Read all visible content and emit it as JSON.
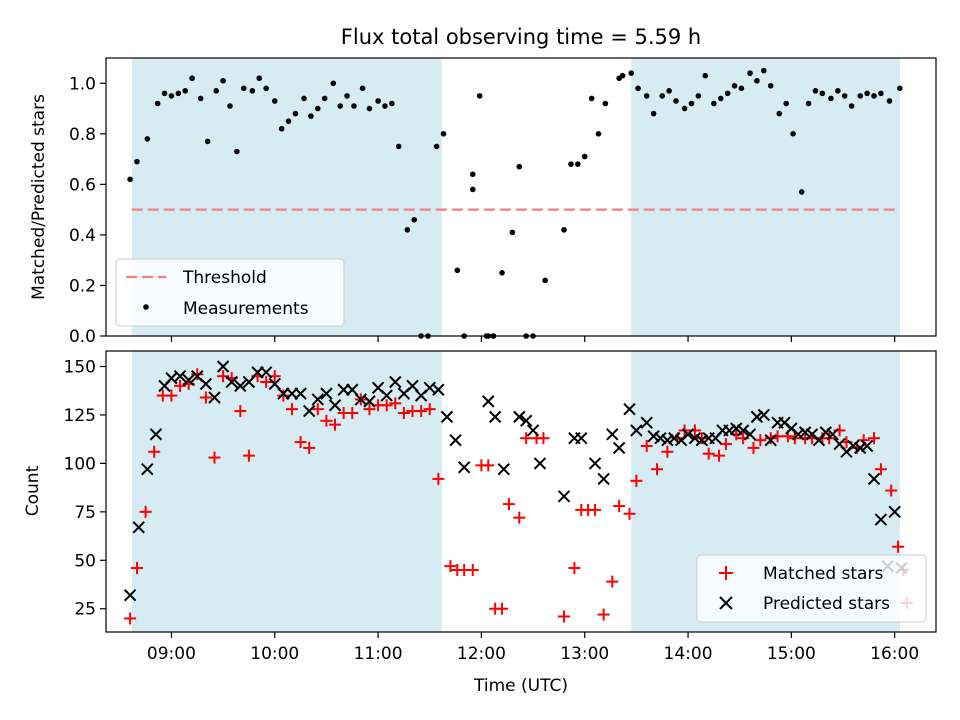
{
  "title": "Flux total observing time = 5.59 h",
  "chart_data": [
    {
      "type": "scatter",
      "panel": "top",
      "ylabel": "Matched/Predicted stars",
      "ylim": [
        0,
        1.1
      ],
      "yticks": [
        0.0,
        0.2,
        0.4,
        0.6,
        0.8,
        1.0
      ],
      "ytick_labels": [
        "0.0",
        "0.2",
        "0.4",
        "0.6",
        "0.8",
        "1.0"
      ],
      "threshold": 0.5,
      "legend_position": "lower-left",
      "series": [
        {
          "name": "Measurements",
          "color": "#000000",
          "x": [
            "08:36",
            "08:40",
            "08:46",
            "08:52",
            "08:56",
            "09:00",
            "09:04",
            "09:08",
            "09:12",
            "09:17",
            "09:21",
            "09:26",
            "09:30",
            "09:34",
            "09:38",
            "09:42",
            "09:47",
            "09:51",
            "09:55",
            "10:00",
            "10:04",
            "10:08",
            "10:12",
            "10:17",
            "10:21",
            "10:25",
            "10:29",
            "10:34",
            "10:38",
            "10:42",
            "10:46",
            "10:51",
            "10:55",
            "11:00",
            "11:04",
            "11:08",
            "11:12",
            "11:17",
            "11:21",
            "11:25",
            "11:29",
            "11:34",
            "11:38",
            "11:46",
            "11:50",
            "11:55",
            "11:55",
            "11:59",
            "12:03",
            "12:04",
            "12:07",
            "12:12",
            "12:18",
            "12:22",
            "12:26",
            "12:30",
            "12:37",
            "12:48",
            "12:52",
            "12:56",
            "13:00",
            "13:04",
            "13:08",
            "13:12",
            "13:20",
            "13:22",
            "13:27",
            "13:31",
            "13:36",
            "13:40",
            "13:45",
            "13:49",
            "13:53",
            "13:58",
            "14:02",
            "14:06",
            "14:10",
            "14:15",
            "14:19",
            "14:23",
            "14:27",
            "14:31",
            "14:36",
            "14:40",
            "14:44",
            "14:48",
            "14:53",
            "14:57",
            "15:01",
            "15:06",
            "15:10",
            "15:14",
            "15:18",
            "15:23",
            "15:27",
            "15:31",
            "15:35",
            "15:40",
            "15:44",
            "15:48",
            "15:52",
            "15:57",
            "16:03"
          ],
          "y": [
            0.62,
            0.69,
            0.78,
            0.92,
            0.96,
            0.95,
            0.96,
            0.97,
            1.02,
            0.94,
            0.77,
            0.97,
            1.01,
            0.91,
            0.73,
            0.98,
            0.97,
            1.02,
            0.98,
            0.93,
            0.82,
            0.85,
            0.88,
            0.94,
            0.87,
            0.9,
            0.94,
            1.0,
            0.91,
            0.95,
            0.91,
            0.98,
            0.9,
            0.93,
            0.91,
            0.92,
            0.75,
            0.42,
            0.46,
            0.0,
            0.0,
            0.75,
            0.8,
            0.26,
            0.0,
            0.64,
            0.58,
            0.95,
            0.0,
            0.0,
            0.0,
            0.25,
            0.41,
            0.67,
            0.0,
            0.0,
            0.22,
            0.42,
            0.68,
            0.68,
            0.71,
            0.94,
            0.8,
            0.92,
            1.02,
            1.03,
            1.04,
            0.98,
            0.95,
            0.88,
            0.95,
            0.97,
            0.93,
            0.9,
            0.92,
            0.95,
            1.03,
            0.92,
            0.94,
            0.96,
            0.99,
            0.98,
            1.04,
            1.01,
            1.05,
            0.99,
            0.88,
            0.92,
            0.8,
            0.57,
            0.92,
            0.97,
            0.96,
            0.94,
            0.97,
            0.95,
            0.91,
            0.95,
            0.96,
            0.95,
            0.96,
            0.93,
            0.98
          ]
        }
      ]
    },
    {
      "type": "scatter",
      "panel": "bottom",
      "xlabel": "Time (UTC)",
      "ylabel": "Count",
      "ylim": [
        13,
        158
      ],
      "yticks": [
        25,
        50,
        75,
        100,
        125,
        150
      ],
      "ytick_labels": [
        "25",
        "50",
        "75",
        "100",
        "125",
        "150"
      ],
      "xticks": [
        "09:00",
        "10:00",
        "11:00",
        "12:00",
        "13:00",
        "14:00",
        "15:00",
        "16:00"
      ],
      "xlim": [
        "08:22",
        "16:24"
      ],
      "shaded_intervals": [
        [
          "08:37",
          "11:37"
        ],
        [
          "13:27",
          "16:03"
        ]
      ],
      "legend_position": "lower-right",
      "series": [
        {
          "name": "Matched stars",
          "color": "#ff0000",
          "marker": "+",
          "x": [
            "08:36",
            "08:40",
            "08:45",
            "08:50",
            "08:55",
            "09:00",
            "09:05",
            "09:10",
            "09:15",
            "09:20",
            "09:25",
            "09:30",
            "09:35",
            "09:40",
            "09:45",
            "09:50",
            "09:55",
            "10:00",
            "10:05",
            "10:10",
            "10:15",
            "10:20",
            "10:25",
            "10:30",
            "10:35",
            "10:40",
            "10:45",
            "10:50",
            "10:55",
            "11:00",
            "11:05",
            "11:10",
            "11:15",
            "11:20",
            "11:25",
            "11:30",
            "11:35",
            "11:42",
            "11:46",
            "11:50",
            "11:55",
            "12:00",
            "12:04",
            "12:08",
            "12:12",
            "12:16",
            "12:22",
            "12:26",
            "12:32",
            "12:36",
            "12:48",
            "12:54",
            "12:58",
            "13:02",
            "13:06",
            "13:11",
            "13:16",
            "13:20",
            "13:26",
            "13:30",
            "13:36",
            "13:42",
            "13:48",
            "13:54",
            "13:58",
            "14:04",
            "14:08",
            "14:12",
            "14:18",
            "14:22",
            "14:28",
            "14:32",
            "14:38",
            "14:42",
            "14:48",
            "14:52",
            "14:58",
            "15:02",
            "15:08",
            "15:12",
            "15:18",
            "15:22",
            "15:28",
            "15:32",
            "15:38",
            "15:42",
            "15:48",
            "15:52",
            "15:58",
            "16:02",
            "16:05",
            "16:07"
          ],
          "y": [
            20,
            46,
            75,
            106,
            135,
            135,
            140,
            141,
            146,
            134,
            103,
            145,
            144,
            127,
            104,
            145,
            142,
            145,
            135,
            128,
            111,
            108,
            128,
            122,
            120,
            126,
            126,
            133,
            128,
            130,
            130,
            131,
            126,
            127,
            127,
            128,
            92,
            47,
            45,
            45,
            45,
            99,
            99,
            25,
            25,
            79,
            72,
            113,
            113,
            113,
            21,
            46,
            76,
            76,
            76,
            22,
            39,
            78,
            74,
            91,
            109,
            97,
            106,
            113,
            117,
            117,
            113,
            105,
            104,
            110,
            115,
            113,
            108,
            112,
            113,
            114,
            114,
            113,
            113,
            113,
            113,
            113,
            117,
            111,
            108,
            112,
            113,
            97,
            86,
            57,
            45,
            28
          ]
        },
        {
          "name": "Predicted stars",
          "color": "#000000",
          "marker": "x",
          "x": [
            "08:36",
            "08:41",
            "08:46",
            "08:51",
            "08:56",
            "09:00",
            "09:05",
            "09:10",
            "09:15",
            "09:20",
            "09:25",
            "09:30",
            "09:35",
            "09:40",
            "09:45",
            "09:50",
            "09:55",
            "10:00",
            "10:05",
            "10:10",
            "10:15",
            "10:20",
            "10:25",
            "10:30",
            "10:35",
            "10:40",
            "10:45",
            "10:50",
            "10:55",
            "11:00",
            "11:05",
            "11:10",
            "11:15",
            "11:20",
            "11:25",
            "11:30",
            "11:35",
            "11:40",
            "11:45",
            "11:50",
            "12:04",
            "12:08",
            "12:13",
            "12:22",
            "12:26",
            "12:30",
            "12:34",
            "12:48",
            "12:54",
            "12:58",
            "13:06",
            "13:11",
            "13:16",
            "13:20",
            "13:26",
            "13:30",
            "13:36",
            "13:40",
            "13:44",
            "13:48",
            "13:52",
            "13:56",
            "14:00",
            "14:04",
            "14:08",
            "14:12",
            "14:16",
            "14:20",
            "14:24",
            "14:28",
            "14:32",
            "14:36",
            "14:40",
            "14:44",
            "14:48",
            "14:52",
            "14:56",
            "15:00",
            "15:04",
            "15:08",
            "15:12",
            "15:16",
            "15:20",
            "15:24",
            "15:28",
            "15:32",
            "15:36",
            "15:40",
            "15:44",
            "15:48",
            "15:52",
            "15:56",
            "16:00",
            "16:04"
          ],
          "y": [
            32,
            67,
            97,
            115,
            140,
            144,
            145,
            143,
            145,
            141,
            134,
            150,
            142,
            140,
            142,
            147,
            147,
            141,
            136,
            136,
            136,
            127,
            133,
            136,
            130,
            138,
            138,
            133,
            132,
            139,
            135,
            142,
            136,
            140,
            135,
            139,
            138,
            124,
            112,
            98,
            132,
            124,
            97,
            124,
            122,
            117,
            100,
            83,
            113,
            113,
            100,
            92,
            115,
            108,
            128,
            117,
            121,
            114,
            113,
            112,
            113,
            112,
            115,
            113,
            112,
            113,
            113,
            117,
            117,
            118,
            117,
            115,
            124,
            125,
            112,
            121,
            121,
            118,
            115,
            116,
            115,
            112,
            116,
            115,
            110,
            106,
            109,
            108,
            109,
            92,
            71,
            47,
            75,
            46
          ]
        }
      ]
    }
  ]
}
